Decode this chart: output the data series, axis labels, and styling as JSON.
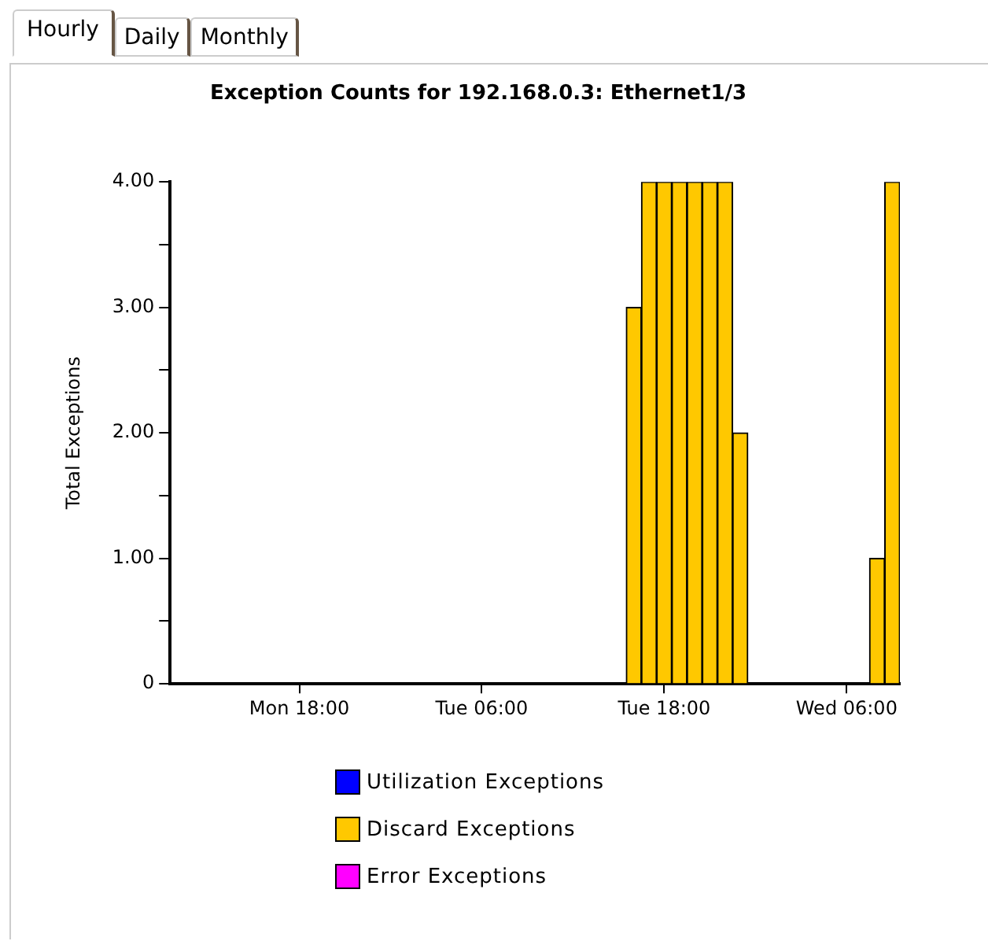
{
  "chart_data": {
    "type": "bar",
    "title": "Exception Counts for 192.168.0.3: Ethernet1/3",
    "ylabel": "Total Exceptions",
    "annotations": [
      "Hourly",
      "Daily",
      "Monthly"
    ],
    "categories": [
      null,
      null,
      null,
      null,
      null,
      null,
      null,
      null,
      "Mon 18:00",
      null,
      null,
      null,
      null,
      null,
      null,
      null,
      null,
      null,
      null,
      null,
      "Tue 06:00",
      null,
      null,
      null,
      null,
      null,
      null,
      null,
      null,
      null,
      null,
      null,
      "Tue 18:00",
      null,
      null,
      null,
      null,
      null,
      null,
      null,
      null,
      null,
      null,
      null,
      "Wed 06:00",
      null,
      null,
      null
    ],
    "series": [
      {
        "name": "Utilization Exceptions",
        "color": "#0000ff",
        "values": [
          0,
          0,
          0,
          0,
          0,
          0,
          0,
          0,
          0,
          0,
          0,
          0,
          0,
          0,
          0,
          0,
          0,
          0,
          0,
          0,
          0,
          0,
          0,
          0,
          0,
          0,
          0,
          0,
          0,
          0,
          0,
          0,
          0,
          0,
          0,
          0,
          0,
          0,
          0,
          0,
          0,
          0,
          0,
          0,
          0,
          0,
          0,
          0
        ]
      },
      {
        "name": "Discard Exceptions",
        "color": "#ffc800",
        "values": [
          0,
          0,
          0,
          0,
          0,
          0,
          0,
          0,
          0,
          0,
          0,
          0,
          0,
          0,
          0,
          0,
          0,
          0,
          0,
          0,
          0,
          0,
          0,
          0,
          0,
          0,
          0,
          0,
          0,
          0,
          3,
          4,
          4,
          4,
          4,
          4,
          4,
          2,
          0,
          0,
          0,
          0,
          0,
          0,
          0,
          0,
          1,
          4
        ]
      },
      {
        "name": "Error Exceptions",
        "color": "#ff00ff",
        "values": [
          0,
          0,
          0,
          0,
          0,
          0,
          0,
          0,
          0,
          0,
          0,
          0,
          0,
          0,
          0,
          0,
          0,
          0,
          0,
          0,
          0,
          0,
          0,
          0,
          0,
          0,
          0,
          0,
          0,
          0,
          0,
          0,
          0,
          0,
          0,
          0,
          0,
          0,
          0,
          0,
          0,
          0,
          0,
          0,
          0,
          0,
          0,
          0
        ]
      }
    ],
    "ylim": [
      0,
      4
    ],
    "yticks": [
      0,
      {
        "value": 0.5,
        "label": null
      },
      {
        "value": 1,
        "label": "1.00"
      },
      {
        "value": 1.5,
        "label": null
      },
      {
        "value": 2,
        "label": "2.00"
      },
      {
        "value": 2.5,
        "label": null
      },
      {
        "value": 3,
        "label": "3.00"
      },
      {
        "value": 3.5,
        "label": null
      },
      {
        "value": 4,
        "label": "4.00"
      }
    ],
    "grid": false,
    "legend": "bottom"
  }
}
